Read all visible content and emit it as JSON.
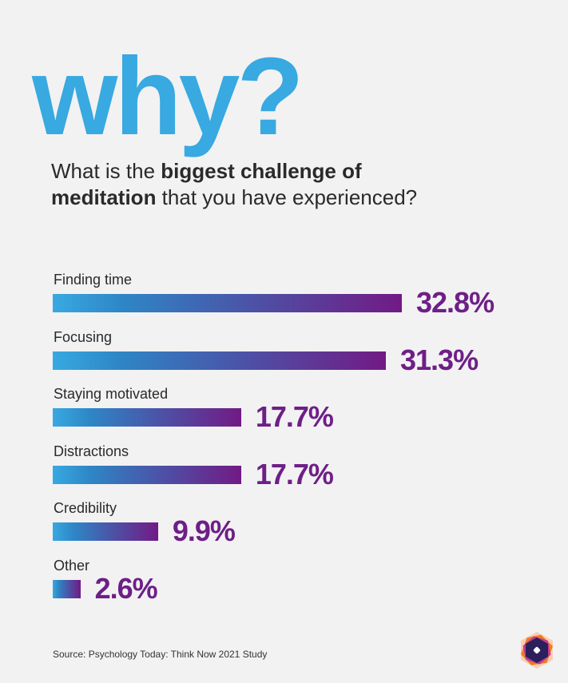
{
  "title": "why?",
  "subtitle": {
    "pre": "What is the ",
    "bold1": "biggest challenge of",
    "line2_bold": "meditation",
    "post": " that you have experienced?"
  },
  "source": "Source: Psychology Today: Think Now 2021 Study",
  "chart_data": {
    "type": "bar",
    "orientation": "horizontal",
    "categories": [
      "Finding time",
      "Focusing",
      "Staying motivated",
      "Distractions",
      "Credibility",
      "Other"
    ],
    "values": [
      32.8,
      31.3,
      17.7,
      17.7,
      9.9,
      2.6
    ],
    "labels": [
      "32.8%",
      "31.3%",
      "17.7%",
      "17.7%",
      "9.9%",
      "2.6%"
    ],
    "unit": "%",
    "colors": {
      "start": "#38a9e1",
      "end": "#721a85",
      "value_text": "#6e1f87"
    }
  }
}
